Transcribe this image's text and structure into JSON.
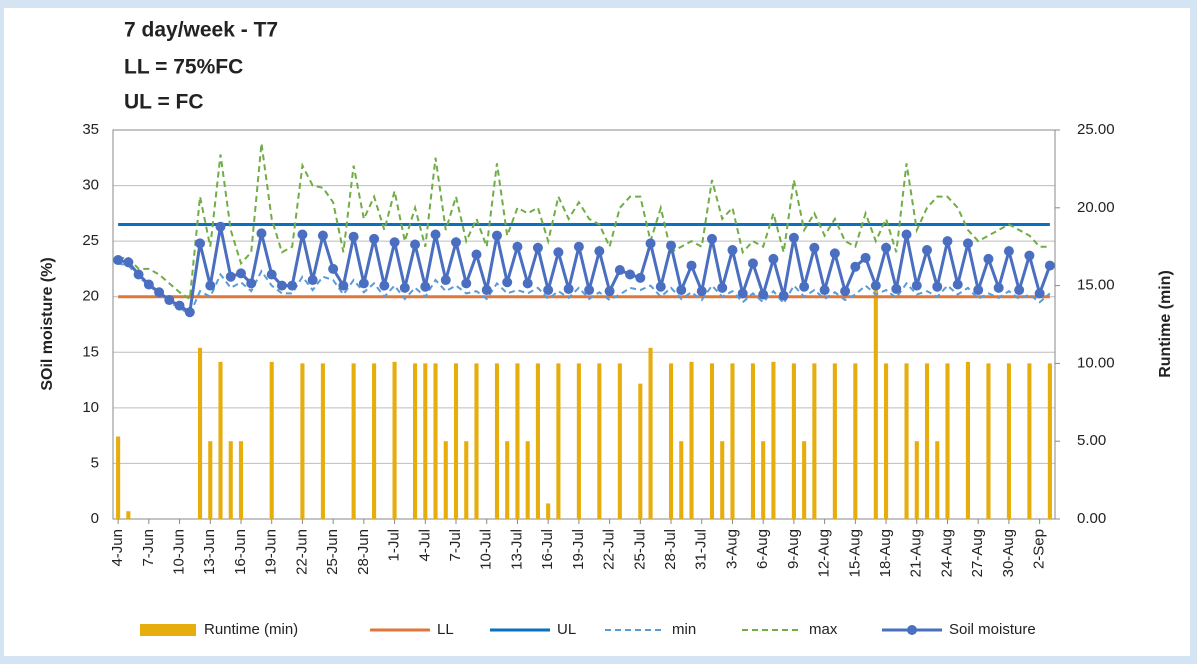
{
  "chart_data": {
    "type": "combo",
    "title": [
      "7 day/week - T7",
      "LL = 75%FC",
      "UL = FC"
    ],
    "y_label": "SOil moisture (%)",
    "y2_label": "Runtime (min)",
    "categories": [
      "4-Jun",
      null,
      null,
      "7-Jun",
      null,
      null,
      "10-Jun",
      null,
      null,
      "13-Jun",
      null,
      null,
      "16-Jun",
      null,
      null,
      "19-Jun",
      null,
      null,
      "22-Jun",
      null,
      null,
      "25-Jun",
      null,
      null,
      "28-Jun",
      null,
      null,
      "1-Jul",
      null,
      null,
      "4-Jul",
      null,
      null,
      "7-Jul",
      null,
      null,
      "10-Jul",
      null,
      null,
      "13-Jul",
      null,
      null,
      "16-Jul",
      null,
      null,
      "19-Jul",
      null,
      null,
      "22-Jul",
      null,
      null,
      "25-Jul",
      null,
      null,
      "28-Jul",
      null,
      null,
      "31-Jul",
      null,
      null,
      "3-Aug",
      null,
      null,
      "6-Aug",
      null,
      null,
      "9-Aug",
      null,
      null,
      "12-Aug",
      null,
      null,
      "15-Aug",
      null,
      null,
      "18-Aug",
      null,
      null,
      "21-Aug",
      null,
      null,
      "24-Aug",
      null,
      null,
      "27-Aug",
      null,
      null,
      "30-Aug",
      null,
      null,
      "2-Sep",
      null
    ],
    "ylim": [
      0,
      35
    ],
    "yticks": [
      0,
      5,
      10,
      15,
      20,
      25,
      30,
      35
    ],
    "y2lim": [
      0,
      25
    ],
    "y2ticks": [
      {
        "value": 0,
        "label": "0.00"
      },
      {
        "value": 5,
        "label": "5.00"
      },
      {
        "value": 10,
        "label": "10.00"
      },
      {
        "value": 15,
        "label": "15.00"
      },
      {
        "value": 20,
        "label": "20.00"
      },
      {
        "value": 25,
        "label": "25.00"
      }
    ],
    "grid": true,
    "legend": "bottom",
    "series": [
      {
        "name": "Runtime (min)",
        "style": "bar",
        "axis": "y2",
        "color": "#e6ad0c",
        "values": [
          5.3,
          0.5,
          0,
          0,
          0,
          0,
          0,
          0,
          11,
          5,
          10.1,
          5,
          5,
          0,
          0,
          10.1,
          0,
          0,
          10,
          0,
          10,
          0,
          0,
          10,
          0,
          10,
          0,
          10.1,
          0,
          10,
          10,
          10,
          5,
          10,
          5,
          10,
          0,
          10,
          5,
          10,
          5,
          10,
          1,
          10,
          0,
          10,
          0,
          10,
          0,
          10,
          0,
          8.7,
          11,
          0,
          10,
          5,
          10.1,
          0,
          10,
          5,
          10,
          0,
          10,
          5,
          10.1,
          0,
          10,
          5,
          10,
          0,
          10,
          0,
          10,
          0,
          15,
          10,
          0,
          10,
          5,
          10,
          5,
          10,
          0,
          10.1,
          0,
          10,
          0,
          10,
          0,
          10,
          0,
          10
        ]
      },
      {
        "name": "LL",
        "style": "line",
        "color": "#e0773a",
        "values": [
          20,
          20,
          20,
          20,
          20,
          20,
          20,
          20,
          20,
          20,
          20,
          20,
          20,
          20,
          20,
          20,
          20,
          20,
          20,
          20,
          20,
          20,
          20,
          20,
          20,
          20,
          20,
          20,
          20,
          20,
          20,
          20,
          20,
          20,
          20,
          20,
          20,
          20,
          20,
          20,
          20,
          20,
          20,
          20,
          20,
          20,
          20,
          20,
          20,
          20,
          20,
          20,
          20,
          20,
          20,
          20,
          20,
          20,
          20,
          20,
          20,
          20,
          20,
          20,
          20,
          20,
          20,
          20,
          20,
          20,
          20,
          20,
          20,
          20,
          20,
          20,
          20,
          20,
          20,
          20,
          20,
          20,
          20,
          20,
          20,
          20,
          20,
          20,
          20,
          20,
          20,
          20
        ]
      },
      {
        "name": "UL",
        "style": "line",
        "color": "#0a70bf",
        "values": [
          26.5,
          26.5,
          26.5,
          26.5,
          26.5,
          26.5,
          26.5,
          26.5,
          26.5,
          26.5,
          26.5,
          26.5,
          26.5,
          26.5,
          26.5,
          26.5,
          26.5,
          26.5,
          26.5,
          26.5,
          26.5,
          26.5,
          26.5,
          26.5,
          26.5,
          26.5,
          26.5,
          26.5,
          26.5,
          26.5,
          26.5,
          26.5,
          26.5,
          26.5,
          26.5,
          26.5,
          26.5,
          26.5,
          26.5,
          26.5,
          26.5,
          26.5,
          26.5,
          26.5,
          26.5,
          26.5,
          26.5,
          26.5,
          26.5,
          26.5,
          26.5,
          26.5,
          26.5,
          26.5,
          26.5,
          26.5,
          26.5,
          26.5,
          26.5,
          26.5,
          26.5,
          26.5,
          26.5,
          26.5,
          26.5,
          26.5,
          26.5,
          26.5,
          26.5,
          26.5,
          26.5,
          26.5,
          26.5,
          26.5,
          26.5,
          26.5,
          26.5,
          26.5,
          26.5,
          26.5,
          26.5,
          26.5,
          26.5,
          26.5,
          26.5,
          26.5,
          26.5,
          26.5,
          26.5,
          26.5,
          26.5,
          26.5
        ]
      },
      {
        "name": "min",
        "style": "dashed",
        "color": "#5b9bd5",
        "values": [
          23.0,
          22.8,
          21.8,
          21.0,
          20.3,
          19.5,
          19.0,
          18.4,
          20.5,
          20.0,
          22.0,
          20.8,
          21.3,
          20.5,
          22.3,
          21.0,
          20.3,
          20.3,
          21.8,
          20.6,
          21.8,
          21.5,
          20.2,
          21.5,
          20.4,
          21.2,
          20.0,
          21.0,
          19.8,
          20.8,
          20.0,
          21.5,
          20.5,
          21.0,
          20.3,
          20.5,
          19.8,
          21.2,
          20.3,
          20.6,
          20.3,
          20.8,
          19.8,
          20.5,
          19.9,
          20.8,
          19.8,
          20.4,
          19.7,
          20.2,
          20.8,
          20.6,
          21.0,
          20.0,
          20.8,
          19.8,
          20.4,
          19.7,
          21.0,
          20.0,
          20.5,
          19.5,
          20.3,
          19.5,
          20.5,
          19.4,
          21.0,
          20.0,
          20.6,
          19.8,
          20.4,
          19.7,
          20.2,
          21.0,
          20.2,
          20.6,
          19.9,
          21.2,
          20.2,
          20.5,
          20.0,
          21.0,
          20.2,
          20.8,
          19.8,
          20.3,
          19.9,
          20.5,
          19.8,
          20.2,
          19.5,
          20.3
        ]
      },
      {
        "name": "max",
        "style": "dashed",
        "color": "#70ad47",
        "values": [
          23.5,
          23.5,
          22.5,
          22.5,
          22.0,
          21.2,
          20.4,
          19.8,
          29.0,
          24.5,
          32.8,
          26.0,
          23.0,
          24.0,
          33.8,
          27.0,
          24.0,
          24.5,
          31.8,
          30.0,
          29.8,
          28.5,
          24.0,
          31.8,
          27.0,
          29.0,
          26.0,
          29.5,
          25.0,
          28.0,
          24.5,
          32.5,
          26.0,
          29.0,
          25.0,
          27.0,
          24.5,
          32.0,
          25.5,
          28.0,
          27.5,
          28.0,
          25.0,
          29.0,
          27.0,
          28.5,
          27.0,
          26.5,
          24.5,
          28.0,
          29.0,
          29.0,
          25.0,
          28.0,
          24.0,
          24.5,
          25.0,
          24.5,
          30.5,
          27.0,
          28.0,
          24.0,
          25.0,
          24.5,
          27.5,
          24.0,
          30.5,
          26.0,
          27.5,
          25.5,
          27.0,
          25.0,
          24.5,
          27.5,
          25.0,
          27.0,
          24.0,
          32.0,
          26.0,
          28.0,
          29.0,
          29.0,
          28.0,
          26.0,
          25.0,
          25.5,
          26.0,
          26.5,
          26.0,
          25.5,
          24.5,
          24.5
        ]
      },
      {
        "name": "Soil moisture",
        "style": "markers",
        "color": "#4a6fc0",
        "values": [
          23.3,
          23.1,
          22.0,
          21.1,
          20.4,
          19.7,
          19.2,
          18.6,
          24.8,
          21.0,
          26.3,
          21.8,
          22.1,
          21.2,
          25.7,
          22.0,
          21.0,
          21.0,
          25.6,
          21.5,
          25.5,
          22.5,
          21.0,
          25.4,
          21.2,
          25.2,
          21.0,
          24.9,
          20.8,
          24.7,
          20.9,
          25.6,
          21.5,
          24.9,
          21.2,
          23.8,
          20.6,
          25.5,
          21.3,
          24.5,
          21.2,
          24.4,
          20.6,
          24.0,
          20.7,
          24.5,
          20.6,
          24.1,
          20.5,
          22.4,
          22.0,
          21.7,
          24.8,
          20.9,
          24.6,
          20.6,
          22.8,
          20.5,
          25.2,
          20.8,
          24.2,
          20.3,
          23.0,
          20.2,
          23.4,
          20.1,
          25.3,
          20.9,
          24.4,
          20.6,
          23.9,
          20.5,
          22.7,
          23.5,
          21.0,
          24.4,
          20.7,
          25.6,
          21.0,
          24.2,
          20.9,
          25.0,
          21.1,
          24.8,
          20.6,
          23.4,
          20.8,
          24.1,
          20.6,
          23.7,
          20.3,
          22.8
        ]
      }
    ]
  }
}
